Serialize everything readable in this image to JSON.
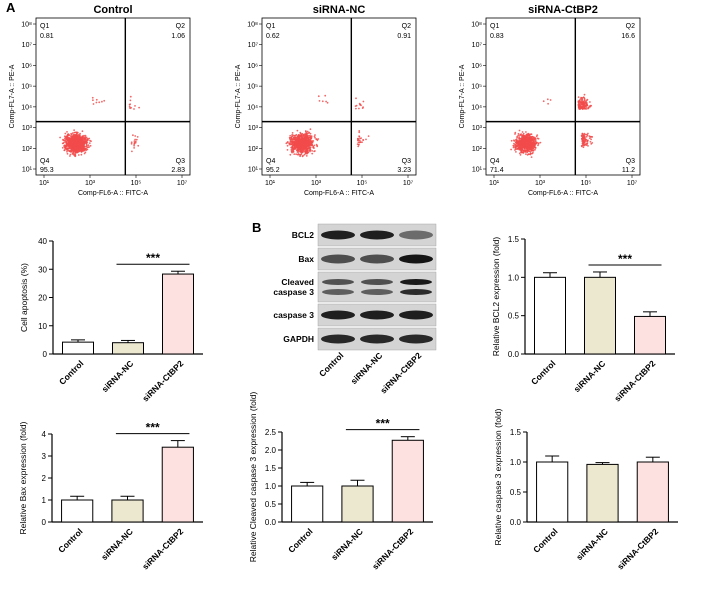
{
  "panel_a_label": "A",
  "panel_b_label": "B",
  "flow": {
    "x_axis_label": "Comp-FL6-A :: FITC-A",
    "y_axis_label": "Comp-FL7-A :: PE-A",
    "x_ticks": [
      "10¹",
      "10³",
      "10⁵",
      "10⁷"
    ],
    "y_ticks": [
      "10¹",
      "10²",
      "10³",
      "10⁴",
      "10⁵",
      "10⁶",
      "10⁷",
      "10⁸"
    ],
    "quadrant_names": [
      "Q1",
      "Q2",
      "Q3",
      "Q4"
    ],
    "plots": [
      {
        "title": "Control",
        "q1": "0.81",
        "q2": "1.06",
        "q3": "2.83",
        "q4": "95.3"
      },
      {
        "title": "siRNA-NC",
        "q1": "0.62",
        "q2": "0.91",
        "q3": "3.23",
        "q4": "95.2"
      },
      {
        "title": "siRNA-CtBP2",
        "q1": "0.83",
        "q2": "16.6",
        "q3": "11.2",
        "q4": "71.4"
      }
    ]
  },
  "western_blot": {
    "bands": [
      "BCL2",
      "Bax",
      "Cleaved caspase 3",
      "caspase 3",
      "GAPDH"
    ],
    "band_line1": [
      "BCL2",
      "Bax",
      "Cleaved",
      "caspase 3",
      "GAPDH"
    ],
    "band_line2": [
      "",
      "",
      "caspase 3",
      "",
      ""
    ],
    "lanes": [
      "Control",
      "siRNA-NC",
      "siRNA-CtBP2"
    ]
  },
  "colors": {
    "control": "#ffffff",
    "nc": "#ece7cf",
    "ctbp2": "#fde0e0",
    "dots": "#f24b4b"
  },
  "significance": "***",
  "chart_data": [
    {
      "id": "apoptosis",
      "type": "bar",
      "categories": [
        "Control",
        "siRNA-NC",
        "siRNA-CtBP2"
      ],
      "values": [
        4.2,
        4.0,
        28.3
      ],
      "errors": [
        0.8,
        0.8,
        1.0
      ],
      "ylabel": "Cell apoptosis (%)",
      "ylim": [
        0,
        40
      ],
      "yticks": [
        "0",
        "10",
        "20",
        "30",
        "40"
      ],
      "sig": [
        1,
        2
      ]
    },
    {
      "id": "bcl2",
      "type": "bar",
      "categories": [
        "Control",
        "siRNA-NC",
        "siRNA-CtBP2"
      ],
      "values": [
        1.0,
        1.0,
        0.49
      ],
      "errors": [
        0.06,
        0.07,
        0.06
      ],
      "ylabel": "Relative BCL2 expression (fold)",
      "ylim": [
        0,
        1.5
      ],
      "yticks": [
        "0.0",
        "0.5",
        "1.0",
        "1.5"
      ],
      "sig": [
        1,
        2
      ]
    },
    {
      "id": "bax",
      "type": "bar",
      "categories": [
        "Control",
        "siRNA-NC",
        "siRNA-CtBP2"
      ],
      "values": [
        1.0,
        1.0,
        3.4
      ],
      "errors": [
        0.17,
        0.17,
        0.3
      ],
      "ylabel": "Relative Bax expression (fold)",
      "ylim": [
        0,
        4
      ],
      "yticks": [
        "0",
        "1",
        "2",
        "3",
        "4"
      ],
      "sig": [
        1,
        2
      ]
    },
    {
      "id": "cleaved",
      "type": "bar",
      "categories": [
        "Control",
        "siRNA-NC",
        "siRNA-CtBP2"
      ],
      "values": [
        1.0,
        1.0,
        2.27
      ],
      "errors": [
        0.1,
        0.16,
        0.1
      ],
      "ylabel": "Relative Cleaved caspase 3 expression (fold)",
      "ylim": [
        0,
        2.5
      ],
      "yticks": [
        "0.0",
        "0.5",
        "1.0",
        "1.5",
        "2.0",
        "2.5"
      ],
      "sig": [
        1,
        2
      ]
    },
    {
      "id": "casp3",
      "type": "bar",
      "categories": [
        "Control",
        "siRNA-NC",
        "siRNA-CtBP2"
      ],
      "values": [
        1.0,
        0.96,
        1.0
      ],
      "errors": [
        0.1,
        0.03,
        0.08
      ],
      "ylabel": "Relative caspase 3 expression (fold)",
      "ylim": [
        0,
        1.5
      ],
      "yticks": [
        "0.0",
        "0.5",
        "1.0",
        "1.5"
      ],
      "sig": null
    }
  ]
}
